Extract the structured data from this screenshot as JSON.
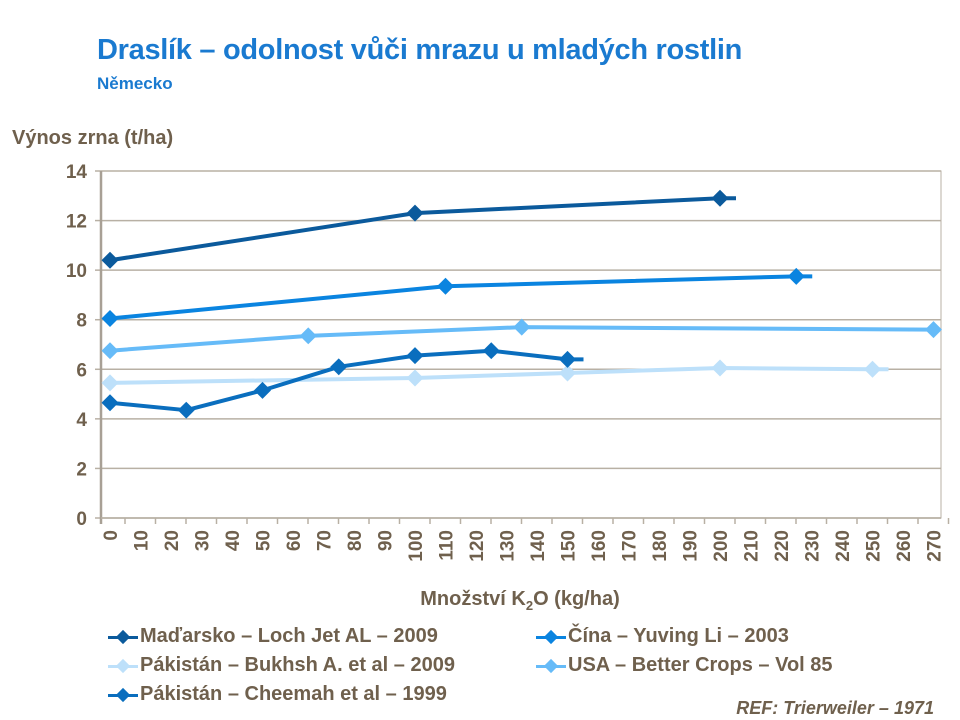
{
  "title": "Draslík – odolnost vůči mrazu u mladých rostlin",
  "subtitle": "Německo",
  "reference": "REF: Trierweiler – 1971",
  "chart_data": {
    "type": "line",
    "ylabel": "Výnos zrna (t/ha)",
    "xlabel_main": "Množství K",
    "xlabel_sub": "2",
    "xlabel_rest": "O (kg/ha)",
    "ylim": [
      0,
      14
    ],
    "yticks": [
      0,
      2,
      4,
      6,
      8,
      10,
      12,
      14
    ],
    "xticks": [
      0,
      10,
      20,
      30,
      40,
      50,
      60,
      70,
      80,
      90,
      100,
      110,
      120,
      130,
      140,
      150,
      160,
      170,
      180,
      190,
      200,
      210,
      220,
      230,
      240,
      250,
      260,
      270
    ],
    "grid": true,
    "legend": "bottom",
    "series": [
      {
        "name": "Maďarsko – Loch Jet AL – 2009",
        "color": "#0b5a9c",
        "x": [
          0,
          100,
          200
        ],
        "y": [
          10.4,
          12.3,
          12.9
        ]
      },
      {
        "name": "Čína – Yuving Li – 2003",
        "color": "#0a84e0",
        "x": [
          0,
          110,
          225
        ],
        "y": [
          8.05,
          9.35,
          9.75
        ]
      },
      {
        "name": "Pákistán – Bukhsh A. et al – 2009",
        "color": "#bde0fa",
        "x": [
          0,
          100,
          150,
          200,
          250
        ],
        "y": [
          5.45,
          5.65,
          5.85,
          6.05,
          6.0
        ]
      },
      {
        "name": "USA – Better Crops – Vol 85",
        "color": "#66bbf8",
        "x": [
          0,
          65,
          135,
          270
        ],
        "y": [
          6.75,
          7.35,
          7.7,
          7.6
        ]
      },
      {
        "name": "Pákistán – Cheemah et al – 1999",
        "color": "#0a6ebe",
        "x": [
          0,
          25,
          50,
          75,
          100,
          125,
          150
        ],
        "y": [
          4.65,
          4.35,
          5.15,
          6.1,
          6.55,
          6.75,
          6.4
        ]
      }
    ]
  }
}
